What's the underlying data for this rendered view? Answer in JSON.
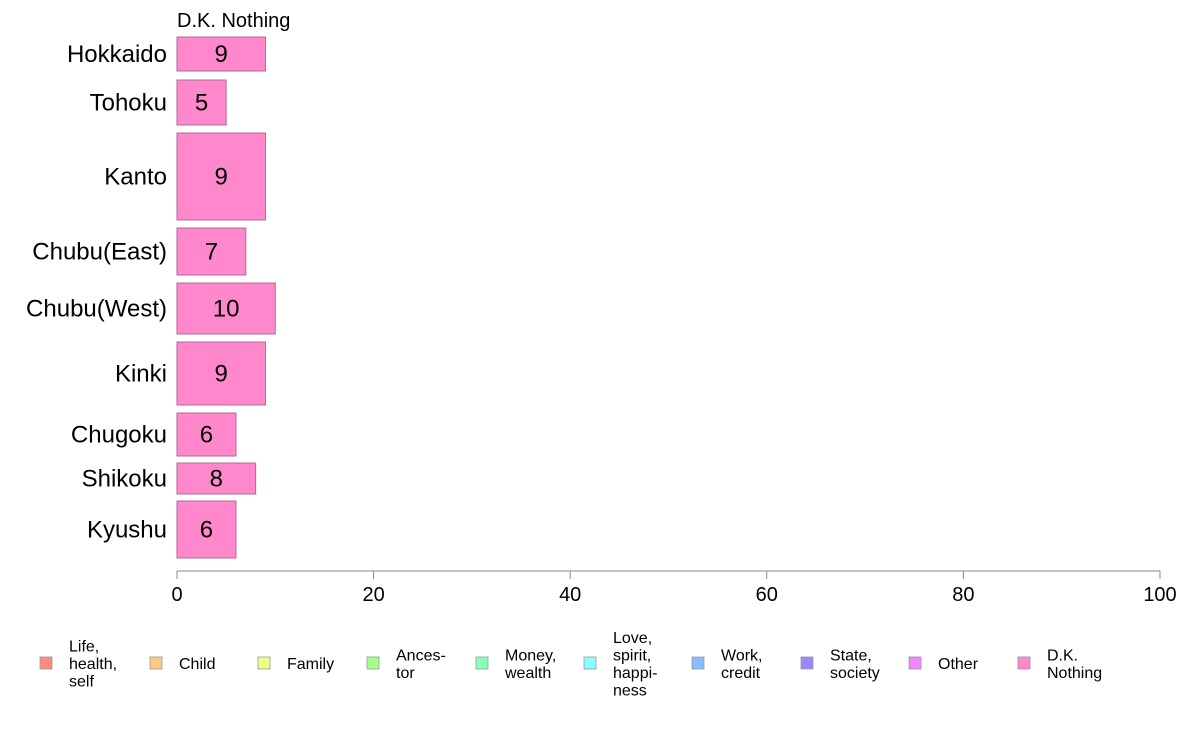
{
  "chart_data": {
    "type": "bar",
    "orientation": "horizontal",
    "panel_title": "D.K. Nothing",
    "categories": [
      "Hokkaido",
      "Tohoku",
      "Kanto",
      "Chubu(East)",
      "Chubu(West)",
      "Kinki",
      "Chugoku",
      "Shikoku",
      "Kyushu"
    ],
    "values": [
      9,
      5,
      9,
      7,
      10,
      9,
      6,
      8,
      6
    ],
    "bar_color": "#ff88cc",
    "bar_stroke": "#b06a96",
    "xlim": [
      0,
      100
    ],
    "x_ticks": [
      "0",
      "20",
      "40",
      "60",
      "80",
      "100"
    ],
    "grid": false,
    "legend_position": "bottom",
    "legend": [
      {
        "label": "Life,\nhealth,\nself",
        "color": "#ff8a80"
      },
      {
        "label": "Child",
        "color": "#ffc98a"
      },
      {
        "label": "Family",
        "color": "#eeff88"
      },
      {
        "label": "Ances-\ntor",
        "color": "#a6ff88"
      },
      {
        "label": "Money,\nwealth",
        "color": "#88ffbb"
      },
      {
        "label": "Love,\nspirit,\nhappi-\nness",
        "color": "#88ffff"
      },
      {
        "label": "Work,\ncredit",
        "color": "#88bbff"
      },
      {
        "label": "State,\nsociety",
        "color": "#9988ff"
      },
      {
        "label": "Other",
        "color": "#ee88ff"
      },
      {
        "label": "D.K.\nNothing",
        "color": "#ff88cc"
      }
    ]
  }
}
